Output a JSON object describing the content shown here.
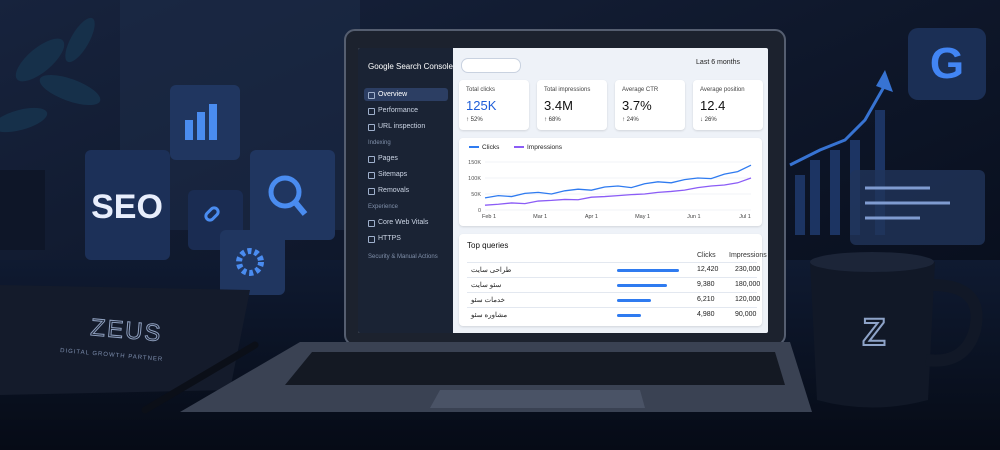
{
  "scene": {
    "cube_label": "SEO",
    "notebook_title": "ZEUS",
    "notebook_subtitle": "DIGITAL GROWTH PARTNER",
    "mug_logo": "Z",
    "google_logo": "G"
  },
  "dashboard": {
    "app_title": "Google Search Console",
    "nav_main": [
      "Overview",
      "Performance",
      "URL inspection"
    ],
    "nav_groups": [
      {
        "heading": "Indexing",
        "items": [
          "Pages",
          "Sitemaps",
          "Removals"
        ]
      },
      {
        "heading": "Experience",
        "items": [
          "Core Web Vitals",
          "HTTPS"
        ]
      }
    ],
    "nav_footer": "Security & Manual Actions",
    "date_range": "Last 6 months",
    "cards": [
      {
        "label": "Total clicks",
        "value": "125K",
        "change": "↑ 52%"
      },
      {
        "label": "Total impressions",
        "value": "3.4M",
        "change": "↑ 68%"
      },
      {
        "label": "Average CTR",
        "value": "3.7%",
        "change": "↑ 24%"
      },
      {
        "label": "Average position",
        "value": "12.4",
        "change": "↓ 26%"
      }
    ],
    "chart": {
      "type": "line",
      "series": [
        {
          "name": "Clicks",
          "color": "#2f7bf0",
          "values": [
            38000,
            45000,
            42000,
            52000,
            55000,
            50000,
            60000,
            65000,
            62000,
            72000,
            75000,
            70000,
            82000,
            88000,
            85000,
            95000,
            100000,
            98000,
            112000,
            120000,
            140000
          ]
        },
        {
          "name": "Impressions",
          "color": "#8b5cf6",
          "values": [
            15000,
            18000,
            22000,
            20000,
            28000,
            30000,
            33000,
            32000,
            40000,
            42000,
            45000,
            48000,
            50000,
            55000,
            58000,
            62000,
            70000,
            75000,
            78000,
            85000,
            100000
          ]
        }
      ],
      "ylim": [
        0,
        150000
      ],
      "yticks": [
        0,
        {
          "value": 50000,
          "label": "50K"
        },
        {
          "value": 100000,
          "label": "100K"
        },
        {
          "value": 150000,
          "label": "150K"
        }
      ],
      "xticks": [
        "Feb 1",
        "Mar 1",
        "Apr 1",
        "May 1",
        "Jun 1",
        "Jul 1"
      ],
      "grid": true
    },
    "table": {
      "title": "Top queries",
      "columns": [
        "Clicks",
        "Impressions"
      ],
      "rows": [
        [
          "طراحی سایت",
          "12,420",
          "230,000"
        ],
        [
          "سئو سایت",
          "9,380",
          "180,000"
        ],
        [
          "خدمات سئو",
          "6,210",
          "120,000"
        ],
        [
          "مشاوره سئو",
          "4,980",
          "90,000"
        ]
      ]
    }
  }
}
